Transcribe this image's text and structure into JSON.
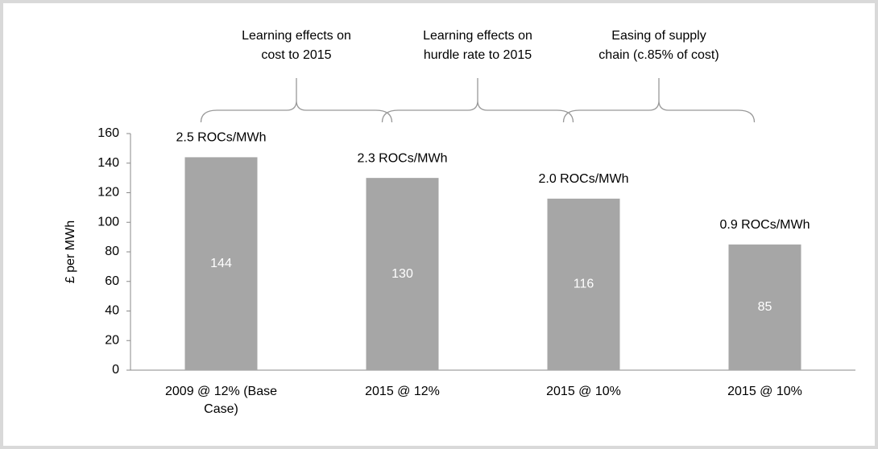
{
  "chart_data": {
    "type": "bar",
    "categories": [
      "2009 @ 12% (Base Case)",
      "2015 @ 12%",
      "2015 @ 10%",
      "2015 @ 10%"
    ],
    "values": [
      144,
      130,
      116,
      85
    ],
    "color": "#a6a6a6",
    "bar_annotations": [
      "2.5 ROCs/MWh",
      "2.3 ROCs/MWh",
      "2.0 ROCs/MWh",
      "0.9 ROCs/MWh"
    ],
    "brace_annotations": [
      [
        "Learning effects on",
        "cost to 2015"
      ],
      [
        "Learning effects on",
        "hurdle rate to 2015"
      ],
      [
        "Easing of supply",
        "chain (c.85% of cost)"
      ]
    ],
    "y_label": "£ per MWh",
    "ylim": [
      0,
      160
    ],
    "yticks": [
      0,
      20,
      40,
      60,
      80,
      100,
      120,
      140,
      160
    ],
    "grid": false
  }
}
